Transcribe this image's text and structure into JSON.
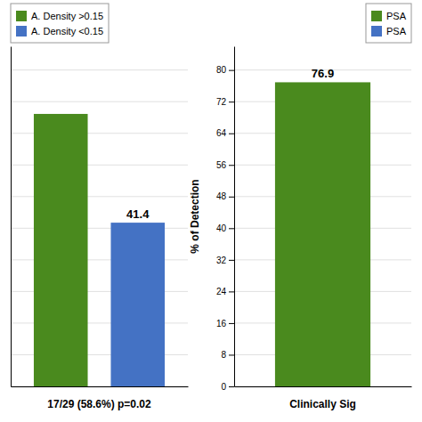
{
  "chart_data": [
    {
      "type": "bar",
      "x_label": "17/29 (58.6%) p=0.02",
      "categories": [
        null,
        null
      ],
      "series": [
        {
          "name": "A. Density >0.15",
          "color": "#4a8a1e",
          "values": [
            68.9,
            null
          ]
        },
        {
          "name": "A. Density <0.15",
          "color": "#4472c4",
          "values": [
            null,
            41.4
          ],
          "data_labels": true
        }
      ],
      "ylim": [
        0,
        86
      ],
      "yticks": [
        0,
        8,
        16,
        24,
        32,
        40,
        48,
        56,
        64,
        72,
        80
      ],
      "grid": true,
      "legend": "upper left",
      "tick_labels": false
    },
    {
      "type": "bar",
      "x_label": "Clinically Sig",
      "y_label": "% of Detection",
      "categories": [
        null
      ],
      "series": [
        {
          "name": "PSA",
          "color": "#4a8a1e",
          "values": [
            76.9
          ],
          "data_labels": true
        },
        {
          "name": "PSA",
          "color": "#4472c4",
          "values": [
            null
          ]
        }
      ],
      "ylim": [
        0,
        86
      ],
      "yticks": [
        0,
        8,
        16,
        24,
        32,
        40,
        48,
        56,
        64,
        72,
        80
      ],
      "grid": true,
      "legend": "upper right",
      "tick_labels": "y"
    }
  ]
}
